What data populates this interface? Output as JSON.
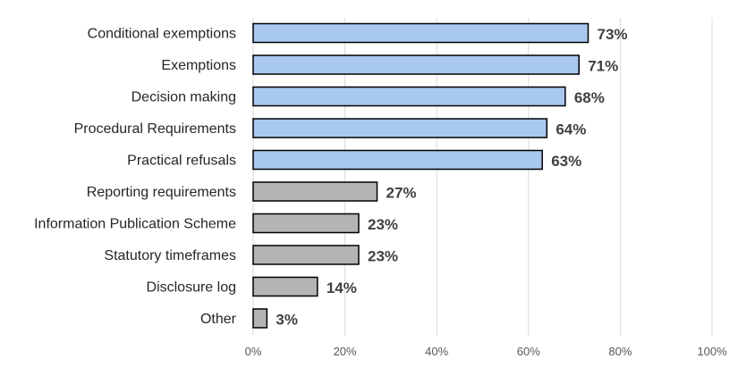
{
  "chart_data": {
    "type": "bar",
    "orientation": "horizontal",
    "title": "",
    "xlabel": "",
    "ylabel": "",
    "xlim": [
      0,
      100
    ],
    "ticks": [
      "0%",
      "20%",
      "40%",
      "60%",
      "80%",
      "100%"
    ],
    "tick_values": [
      0,
      20,
      40,
      60,
      80,
      100
    ],
    "grid": "vertical",
    "categories": [
      "Conditional exemptions",
      "Exemptions",
      "Decision making",
      "Procedural Requirements",
      "Practical refusals",
      "Reporting requirements",
      "Information Publication Scheme",
      "Statutory timeframes",
      "Disclosure log",
      "Other"
    ],
    "values": [
      73,
      71,
      68,
      64,
      63,
      27,
      23,
      23,
      14,
      3
    ],
    "data_labels": [
      "73%",
      "71%",
      "68%",
      "64%",
      "63%",
      "27%",
      "23%",
      "23%",
      "14%",
      "3%"
    ],
    "bar_colors": [
      "#a9c8f0",
      "#a9c8f0",
      "#a9c8f0",
      "#a9c8f0",
      "#a9c8f0",
      "#b4b4b4",
      "#b4b4b4",
      "#b4b4b4",
      "#b4b4b4",
      "#b4b4b4"
    ],
    "colors": {
      "highlight": "#a9c8f0",
      "other": "#b4b4b4",
      "outline": "#000000",
      "grid": "#d9d9d9"
    }
  }
}
